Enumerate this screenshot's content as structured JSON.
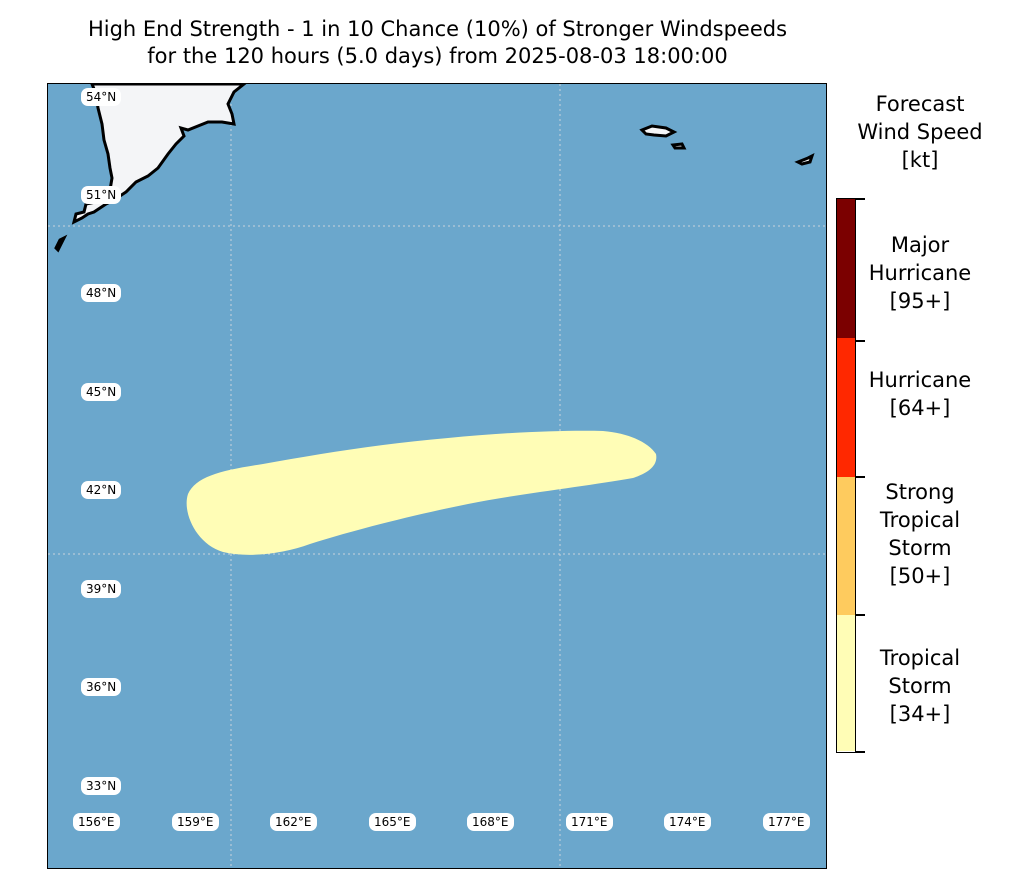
{
  "title": {
    "line1": "High End Strength - 1 in 10 Chance (10%) of Stronger Windspeeds",
    "line2": "for the 120 hours (5.0 days) from 2025-08-03 18:00:00"
  },
  "map": {
    "ocean_color": "#6ba7cc",
    "land_color": "#f4f5f7",
    "swath_color": "#fffdb6",
    "lat_labels": [
      "54°N",
      "51°N",
      "48°N",
      "45°N",
      "42°N",
      "39°N",
      "36°N",
      "33°N"
    ],
    "lon_labels": [
      "156°E",
      "159°E",
      "162°E",
      "165°E",
      "168°E",
      "171°E",
      "174°E",
      "177°E"
    ]
  },
  "legend": {
    "title": [
      "Forecast",
      "Wind Speed",
      "[kt]"
    ],
    "categories": [
      {
        "lines": [
          "Major",
          "Hurricane",
          "[95+]"
        ],
        "color": "#7b0000"
      },
      {
        "lines": [
          "Hurricane",
          "[64+]"
        ],
        "color": "#ff2800"
      },
      {
        "lines": [
          "Strong",
          "Tropical",
          "Storm",
          "[50+]"
        ],
        "color": "#fecb5e"
      },
      {
        "lines": [
          "Tropical",
          "Storm",
          "[34+]"
        ],
        "color": "#fffdb6"
      }
    ]
  }
}
